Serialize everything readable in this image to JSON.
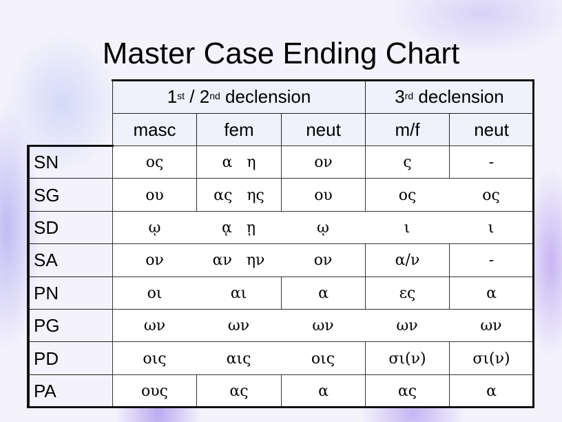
{
  "title": "Master Case Ending Chart",
  "header": {
    "group1": {
      "num": "1",
      "sup1": "st",
      "mid": " / 2",
      "sup2": "nd",
      "rest": " declension"
    },
    "group2": {
      "num": "3",
      "sup1": "rd",
      "rest": " declension"
    },
    "columns": [
      "masc",
      "fem",
      "neut",
      "m/f",
      "neut"
    ]
  },
  "rows": [
    {
      "label": "SN",
      "cells": [
        "ος",
        "α   η",
        "ον",
        "ς",
        "-"
      ]
    },
    {
      "label": "SG",
      "cells": [
        "ου",
        "ας   ης",
        "ου",
        "ος",
        "ος"
      ]
    },
    {
      "label": "SD",
      "cells": [
        "ῳ",
        "ᾳ   ῃ",
        "ῳ",
        "ι",
        "ι"
      ]
    },
    {
      "label": "SA",
      "cells": [
        "ον",
        "αν   ην",
        "ον",
        "α/ν",
        "-"
      ]
    },
    {
      "label": "PN",
      "cells": [
        "οι",
        "αι",
        "α",
        "ες",
        "α"
      ]
    },
    {
      "label": "PG",
      "cells": [
        "ων",
        "ων",
        "ων",
        "ων",
        "ων"
      ]
    },
    {
      "label": "PD",
      "cells": [
        "οις",
        "αις",
        "οις",
        "σι(ν)",
        "σι(ν)"
      ]
    },
    {
      "label": "PA",
      "cells": [
        "ους",
        "ας",
        "α",
        "ας",
        "α"
      ]
    }
  ]
}
